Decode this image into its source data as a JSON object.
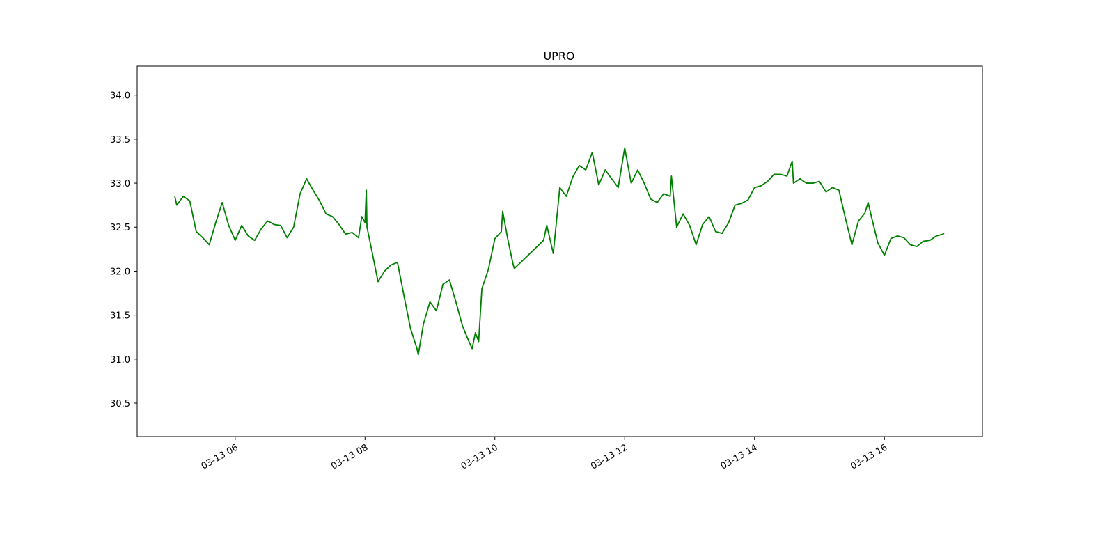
{
  "chart_data": {
    "type": "line",
    "title": "UPRO",
    "x": [
      5.07,
      5.1,
      5.2,
      5.3,
      5.4,
      5.5,
      5.6,
      5.7,
      5.8,
      5.9,
      6.0,
      6.1,
      6.2,
      6.3,
      6.4,
      6.5,
      6.6,
      6.7,
      6.8,
      6.9,
      7.0,
      7.1,
      7.2,
      7.3,
      7.4,
      7.5,
      7.6,
      7.7,
      7.8,
      7.9,
      7.95,
      8.0,
      8.02,
      8.03,
      8.1,
      8.2,
      8.3,
      8.4,
      8.5,
      8.6,
      8.7,
      8.8,
      8.82,
      8.9,
      9.0,
      9.1,
      9.2,
      9.3,
      9.4,
      9.5,
      9.6,
      9.65,
      9.7,
      9.75,
      9.8,
      9.9,
      10.0,
      10.1,
      10.12,
      10.2,
      10.28,
      10.3,
      10.75,
      10.8,
      10.9,
      11.0,
      11.1,
      11.2,
      11.3,
      11.4,
      11.5,
      11.6,
      11.7,
      11.8,
      11.9,
      12.0,
      12.1,
      12.2,
      12.3,
      12.4,
      12.5,
      12.6,
      12.7,
      12.72,
      12.8,
      12.9,
      13.0,
      13.1,
      13.2,
      13.3,
      13.4,
      13.5,
      13.6,
      13.7,
      13.8,
      13.9,
      14.0,
      14.1,
      14.2,
      14.3,
      14.4,
      14.5,
      14.58,
      14.6,
      14.7,
      14.8,
      14.9,
      15.0,
      15.1,
      15.2,
      15.3,
      15.4,
      15.5,
      15.6,
      15.7,
      15.75,
      15.8,
      15.9,
      16.0,
      16.1,
      16.2,
      16.3,
      16.4,
      16.5,
      16.6,
      16.7,
      16.8,
      16.9,
      16.92
    ],
    "values": [
      32.85,
      32.75,
      32.85,
      32.8,
      32.45,
      32.38,
      32.3,
      32.55,
      32.78,
      32.52,
      32.35,
      32.52,
      32.4,
      32.35,
      32.48,
      32.57,
      32.53,
      32.52,
      32.38,
      32.5,
      32.88,
      33.05,
      32.92,
      32.8,
      32.65,
      32.62,
      32.53,
      32.42,
      32.44,
      32.38,
      32.62,
      32.55,
      32.92,
      32.5,
      32.25,
      31.88,
      32.0,
      32.07,
      32.1,
      31.72,
      31.35,
      31.12,
      31.05,
      31.4,
      31.65,
      31.55,
      31.85,
      31.9,
      31.65,
      31.38,
      31.2,
      31.12,
      31.3,
      31.2,
      31.8,
      32.02,
      32.37,
      32.45,
      32.68,
      32.36,
      32.08,
      32.03,
      32.35,
      32.52,
      32.2,
      32.95,
      32.85,
      33.07,
      33.2,
      33.15,
      33.35,
      32.98,
      33.15,
      33.05,
      32.95,
      33.4,
      33.0,
      33.15,
      33.0,
      32.82,
      32.78,
      32.88,
      32.85,
      33.08,
      32.5,
      32.65,
      32.52,
      32.3,
      32.53,
      32.62,
      32.45,
      32.43,
      32.55,
      32.75,
      32.77,
      32.81,
      32.95,
      32.97,
      33.02,
      33.1,
      33.1,
      33.08,
      33.25,
      33.0,
      33.05,
      33.0,
      33.0,
      33.02,
      32.9,
      32.95,
      32.92,
      32.6,
      32.3,
      32.57,
      32.66,
      32.78,
      32.62,
      32.32,
      32.18,
      32.37,
      32.4,
      32.38,
      32.3,
      32.28,
      32.34,
      32.35,
      32.4,
      32.42,
      32.43
    ],
    "color": "#008000",
    "xlim": [
      4.49,
      17.51
    ],
    "xticks": [
      {
        "value": 6,
        "label": "03-13 06"
      },
      {
        "value": 8,
        "label": "03-13 08"
      },
      {
        "value": 10,
        "label": "03-13 10"
      },
      {
        "value": 12,
        "label": "03-13 12"
      },
      {
        "value": 14,
        "label": "03-13 14"
      },
      {
        "value": 16,
        "label": "03-13 16"
      }
    ],
    "ylim": [
      30.12,
      34.33
    ],
    "yticks": [
      30.5,
      {
        "value": 31,
        "label": "31.0"
      },
      31.5,
      {
        "value": 32,
        "label": "32.0"
      },
      32.5,
      {
        "value": 33,
        "label": "33.0"
      },
      33.5,
      {
        "value": 34,
        "label": "34.0"
      }
    ]
  }
}
